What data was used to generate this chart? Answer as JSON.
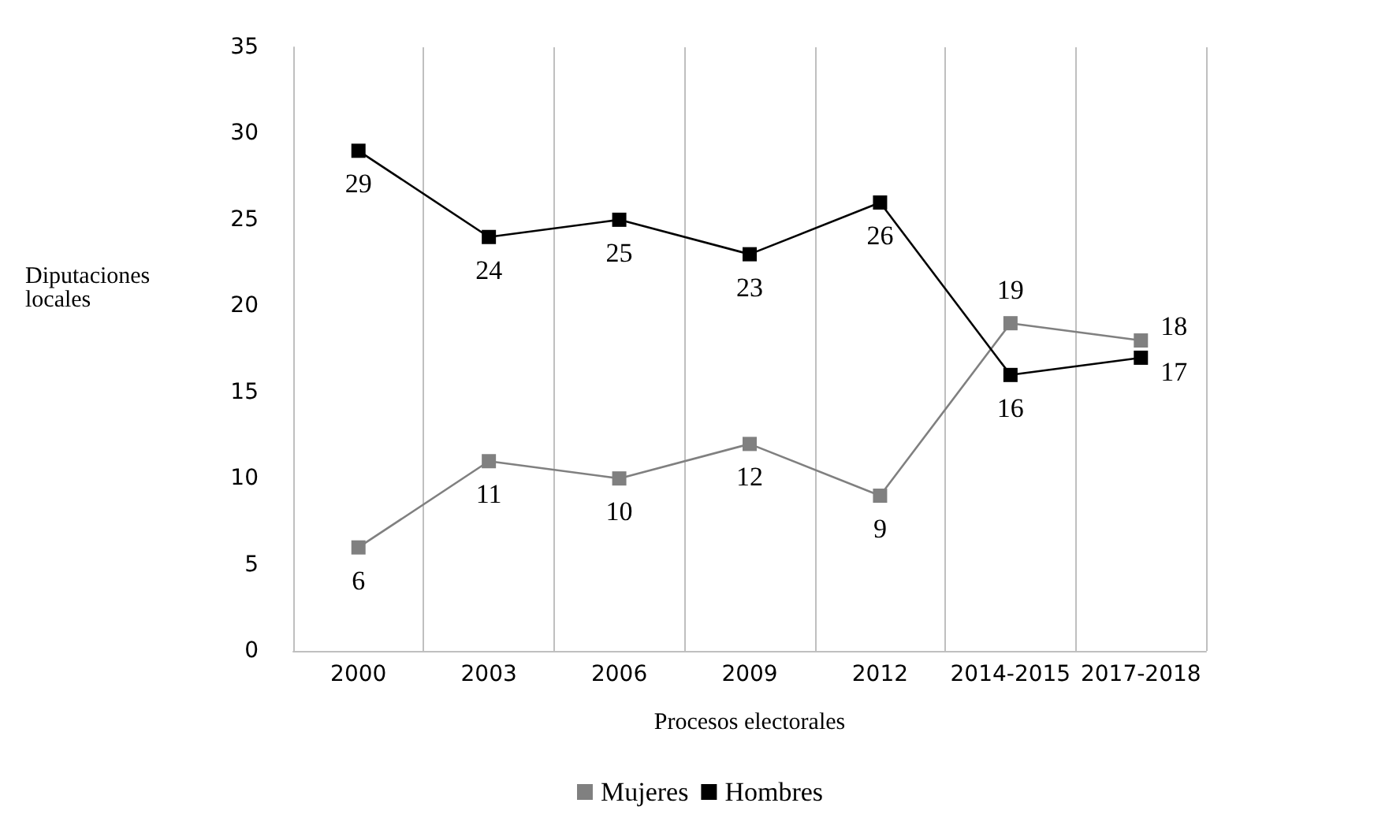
{
  "chart_data": {
    "type": "line",
    "xlabel": "Procesos electorales",
    "ylabel": "Diputaciones locales",
    "categories": [
      "2000",
      "2003",
      "2006",
      "2009",
      "2012",
      "2014-2015",
      "2017-2018"
    ],
    "series": [
      {
        "name": "Mujeres",
        "color": "#808080",
        "values": [
          6,
          11,
          10,
          12,
          9,
          19,
          18
        ]
      },
      {
        "name": "Hombres",
        "color": "#000000",
        "values": [
          29,
          24,
          25,
          23,
          26,
          16,
          17
        ]
      }
    ],
    "ylim": [
      0,
      35
    ],
    "yticks": [
      0,
      5,
      10,
      15,
      20,
      25,
      30,
      35
    ],
    "grid": "x",
    "legend": "bottom",
    "marker": "square",
    "line_style": "solid",
    "data_labels": true
  }
}
